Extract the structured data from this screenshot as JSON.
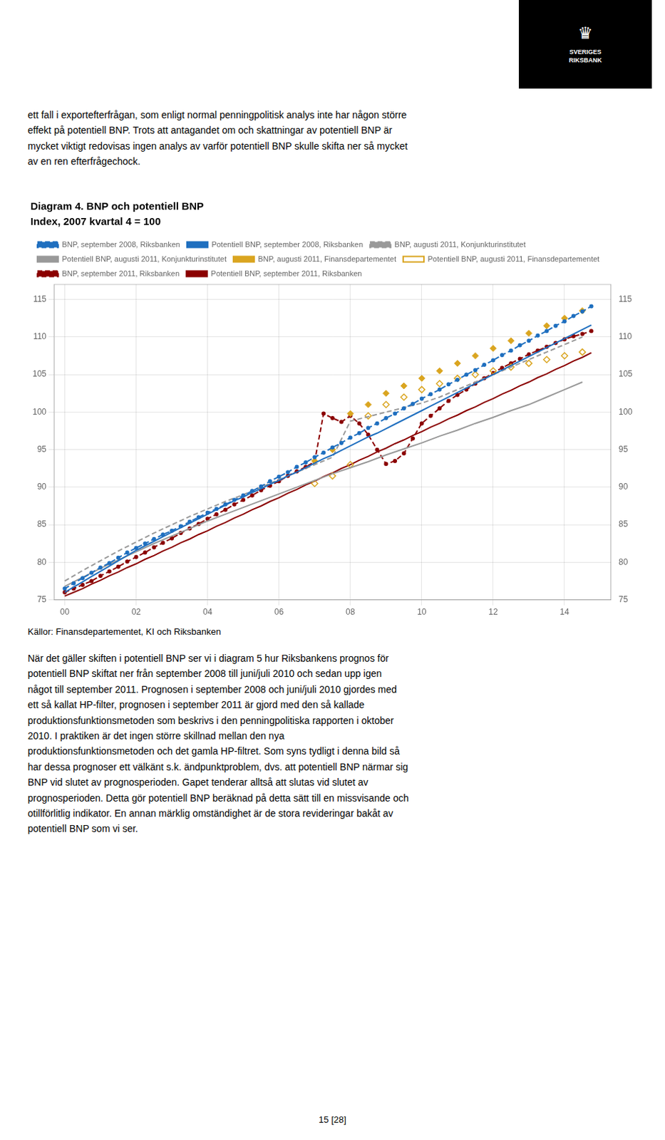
{
  "chart_data": {
    "type": "line",
    "title": "Diagram 4. BNP och potentiell BNP",
    "subtitle": "Index, 2007 kvartal 4 = 100",
    "annotations": [
      "Källor: Finansdepartementet, KI och Riksbanken"
    ],
    "xlim": [
      -0.3,
      15.3
    ],
    "xticks": [
      {
        "value": 0,
        "label": "00"
      },
      {
        "value": 2,
        "label": "02"
      },
      {
        "value": 4,
        "label": "04"
      },
      {
        "value": 6,
        "label": "06"
      },
      {
        "value": 8,
        "label": "08"
      },
      {
        "value": 10,
        "label": "10"
      },
      {
        "value": 12,
        "label": "12"
      },
      {
        "value": 14,
        "label": "14"
      }
    ],
    "ylim": [
      75,
      117
    ],
    "yticks": [
      75,
      80,
      85,
      90,
      95,
      100,
      105,
      110,
      115
    ],
    "y2lim": [
      75,
      117
    ],
    "y2ticks": [
      75,
      80,
      85,
      90,
      95,
      100,
      105,
      110,
      115
    ],
    "grid": true,
    "legend": "upper left",
    "series": [
      {
        "name": "BNP, september 2008, Riksbanken",
        "color": "#1F6FBF",
        "line_style": "dashed",
        "marker": "circle",
        "x": [
          0,
          0.25,
          0.5,
          0.75,
          1,
          1.25,
          1.5,
          1.75,
          2,
          2.25,
          2.5,
          2.75,
          3,
          3.25,
          3.5,
          3.75,
          4,
          4.25,
          4.5,
          4.75,
          5,
          5.25,
          5.5,
          5.75,
          6,
          6.25,
          6.5,
          6.75,
          7,
          7.25,
          7.5,
          7.75,
          8,
          8.25,
          8.5,
          8.75,
          9,
          9.25,
          9.5,
          9.75,
          10,
          10.25,
          10.5,
          10.75,
          11,
          11.25,
          11.5,
          11.75,
          12,
          12.25,
          12.5,
          12.75,
          13,
          13.25,
          13.5,
          13.75,
          14,
          14.25,
          14.5,
          14.75
        ],
        "values": [
          76.5,
          77.2,
          77.9,
          78.6,
          79.3,
          79.9,
          80.6,
          81.3,
          81.9,
          82.5,
          83.1,
          83.7,
          84.2,
          84.8,
          85.4,
          86.0,
          86.6,
          87.1,
          87.7,
          88.3,
          88.9,
          89.5,
          90.1,
          90.8,
          91.4,
          92.0,
          92.7,
          93.3,
          94.0,
          94.6,
          95.3,
          95.9,
          96.6,
          97.2,
          97.9,
          98.5,
          99.2,
          99.8,
          100.5,
          101.1,
          101.8,
          102.4,
          103.0,
          103.7,
          104.3,
          105.0,
          105.6,
          106.3,
          106.9,
          107.6,
          108.2,
          108.9,
          109.5,
          110.2,
          110.8,
          111.5,
          112.1,
          112.8,
          113.4,
          114.1
        ]
      },
      {
        "name": "Potentiell BNP, september 2008, Riksbanken",
        "color": "#1F6FBF",
        "line_style": "solid",
        "marker": "none",
        "x": [
          0,
          0.25,
          0.5,
          0.75,
          1,
          1.25,
          1.5,
          1.75,
          2,
          2.25,
          2.5,
          2.75,
          3,
          3.25,
          3.5,
          3.75,
          4,
          4.25,
          4.5,
          4.75,
          5,
          5.25,
          5.5,
          5.75,
          6,
          6.25,
          6.5,
          6.75,
          7,
          7.25,
          7.5,
          7.75,
          8,
          8.25,
          8.5,
          8.75,
          9,
          9.25,
          9.5,
          9.75,
          10,
          10.25,
          10.5,
          10.75,
          11,
          11.25,
          11.5,
          11.75,
          12,
          12.25,
          12.5,
          12.75,
          13,
          13.25,
          13.5,
          13.75,
          14,
          14.25,
          14.5,
          14.75
        ],
        "values": [
          76.0,
          76.7,
          77.4,
          78.1,
          78.8,
          79.5,
          80.2,
          80.9,
          81.6,
          82.2,
          82.8,
          83.4,
          84.0,
          84.6,
          85.2,
          85.8,
          86.4,
          87.0,
          87.6,
          88.2,
          88.7,
          89.3,
          89.8,
          90.4,
          90.9,
          91.5,
          92.0,
          92.6,
          93.2,
          93.8,
          94.3,
          94.9,
          95.5,
          96.1,
          96.7,
          97.2,
          97.8,
          98.4,
          99.0,
          99.6,
          100.2,
          100.8,
          101.4,
          102.0,
          102.6,
          103.2,
          103.8,
          104.4,
          105.0,
          105.6,
          106.2,
          106.8,
          107.4,
          108.0,
          108.6,
          109.2,
          109.8,
          110.4,
          111.0,
          111.6
        ]
      },
      {
        "name": "BNP, augusti 2011, Konjunkturinstitutet",
        "color": "#999999",
        "line_style": "dashed",
        "marker": "none",
        "x": [
          0,
          0.5,
          1,
          1.5,
          2,
          2.5,
          3,
          3.5,
          4,
          4.5,
          5,
          5.5,
          6,
          6.5,
          7,
          7.5,
          8,
          8.5,
          9,
          9.5,
          10,
          10.5,
          11,
          11.5,
          12,
          12.5,
          13,
          13.5,
          14,
          14.5
        ],
        "values": [
          77.5,
          78.9,
          80.2,
          81.5,
          82.7,
          83.9,
          85.0,
          86.1,
          87.1,
          88.1,
          89.0,
          90.0,
          91.0,
          92.0,
          93.0,
          94.0,
          98.8,
          99.4,
          100.0,
          100.6,
          101.2,
          102.0,
          103.0,
          104.0,
          105.0,
          106.0,
          107.0,
          108.0,
          109.0,
          110.0
        ]
      },
      {
        "name": "Potentiell BNP, augusti 2011, Konjunkturinstitutet",
        "color": "#999999",
        "line_style": "solid",
        "marker": "none",
        "x": [
          0,
          0.5,
          1,
          1.5,
          2,
          2.5,
          3,
          3.5,
          4,
          4.5,
          5,
          5.5,
          6,
          6.5,
          7,
          7.5,
          8,
          8.5,
          9,
          9.5,
          10,
          10.5,
          11,
          11.5,
          12,
          12.5,
          13,
          13.5,
          14,
          14.5
        ],
        "values": [
          76.8,
          78.0,
          79.2,
          80.3,
          81.4,
          82.5,
          83.5,
          84.5,
          85.5,
          86.4,
          87.3,
          88.2,
          89.1,
          90.0,
          90.9,
          91.8,
          92.6,
          93.4,
          94.3,
          95.1,
          95.9,
          96.8,
          97.6,
          98.5,
          99.3,
          100.2,
          101.0,
          102.0,
          103.0,
          104.0
        ]
      },
      {
        "name": "BNP, augusti 2011, Finansdepartementet",
        "color": "#DAA520",
        "line_style": "none",
        "marker": "diamond",
        "x": [
          7,
          7.5,
          8,
          8.5,
          9,
          9.5,
          10,
          10.5,
          11,
          11.5,
          12,
          12.5,
          13,
          13.5,
          14,
          14.5
        ],
        "values": [
          93.5,
          95.0,
          99.8,
          101.0,
          102.5,
          103.5,
          104.5,
          105.5,
          106.5,
          107.5,
          108.5,
          109.5,
          110.5,
          111.5,
          112.5,
          113.5
        ]
      },
      {
        "name": "Potentiell BNP, augusti 2011, Finansdepartementet",
        "color": "#DAA520",
        "line_style": "none",
        "marker": "open-diamond",
        "x": [
          7,
          7.5,
          8,
          8.5,
          9,
          9.5,
          10,
          10.5,
          11,
          11.5,
          12,
          12.5,
          13,
          13.5,
          14,
          14.5
        ],
        "values": [
          90.5,
          91.5,
          93.0,
          99.5,
          101.0,
          102.0,
          103.0,
          103.8,
          104.5,
          105.0,
          105.5,
          106.0,
          106.5,
          107.0,
          107.5,
          108.0
        ]
      },
      {
        "name": "BNP, september 2011, Riksbanken",
        "color": "#8B0000",
        "line_style": "dashed",
        "marker": "circle",
        "x": [
          0,
          0.25,
          0.5,
          0.75,
          1,
          1.25,
          1.5,
          1.75,
          2,
          2.25,
          2.5,
          2.75,
          3,
          3.25,
          3.5,
          3.75,
          4,
          4.25,
          4.5,
          4.75,
          5,
          5.25,
          5.5,
          5.75,
          6,
          6.25,
          6.5,
          6.75,
          7,
          7.25,
          7.5,
          7.75,
          8,
          8.25,
          8.5,
          8.75,
          9,
          9.25,
          9.5,
          9.75,
          10,
          10.25,
          10.5,
          10.75,
          11,
          11.25,
          11.5,
          11.75,
          12,
          12.25,
          12.5,
          12.75,
          13,
          13.25,
          13.5,
          13.75,
          14,
          14.25,
          14.5,
          14.75
        ],
        "values": [
          76.0,
          76.5,
          77.0,
          77.5,
          78.2,
          78.8,
          79.4,
          80.1,
          80.7,
          81.3,
          82.0,
          82.6,
          83.2,
          83.9,
          84.5,
          85.1,
          85.8,
          86.4,
          87.0,
          87.7,
          88.3,
          88.9,
          89.6,
          90.2,
          90.8,
          91.5,
          92.1,
          92.7,
          93.4,
          99.8,
          99.2,
          98.7,
          99.5,
          98.5,
          97.0,
          95.0,
          93.1,
          93.5,
          94.5,
          96.5,
          98.5,
          99.5,
          100.5,
          101.5,
          102.3,
          103.0,
          103.8,
          104.5,
          105.2,
          105.9,
          106.5,
          107.1,
          107.7,
          108.2,
          108.7,
          109.2,
          109.7,
          110.1,
          110.4,
          110.8
        ]
      },
      {
        "name": "Potentiell BNP, september 2011, Riksbanken",
        "color": "#8B0000",
        "line_style": "solid",
        "marker": "none",
        "x": [
          0,
          0.25,
          0.5,
          0.75,
          1,
          1.25,
          1.5,
          1.75,
          2,
          2.25,
          2.5,
          2.75,
          3,
          3.25,
          3.5,
          3.75,
          4,
          4.25,
          4.5,
          4.75,
          5,
          5.25,
          5.5,
          5.75,
          6,
          6.25,
          6.5,
          6.75,
          7,
          7.25,
          7.5,
          7.75,
          8,
          8.25,
          8.5,
          8.75,
          9,
          9.25,
          9.5,
          9.75,
          10,
          10.25,
          10.5,
          10.75,
          11,
          11.25,
          11.5,
          11.75,
          12,
          12.25,
          12.5,
          12.75,
          13,
          13.25,
          13.5,
          13.75,
          14,
          14.25,
          14.5,
          14.75
        ],
        "values": [
          75.5,
          76.0,
          76.5,
          77.1,
          77.6,
          78.2,
          78.7,
          79.3,
          79.8,
          80.4,
          80.9,
          81.5,
          82.0,
          82.6,
          83.1,
          83.7,
          84.2,
          84.8,
          85.3,
          85.9,
          86.4,
          87.0,
          87.5,
          88.1,
          88.6,
          89.2,
          89.7,
          90.3,
          90.8,
          91.4,
          91.9,
          92.5,
          93.0,
          93.6,
          94.1,
          94.7,
          95.2,
          95.8,
          96.3,
          96.9,
          97.4,
          98.0,
          98.5,
          99.1,
          99.6,
          100.2,
          100.7,
          101.3,
          101.8,
          102.4,
          102.9,
          103.5,
          104.0,
          104.6,
          105.1,
          105.7,
          106.2,
          106.8,
          107.3,
          107.9
        ]
      }
    ]
  },
  "page_texts": {
    "logo_symbol": "♛",
    "logo": "SVERIGES\nRIKSBANK",
    "top_text": "ett fall i exportefterfrågan, som enligt normal penningpolitisk analys inte har någon större\neffekt på potentiell BNP. Trots att antagandet om och skattningar av potentiell BNP är\nmycket viktigt redovisas ingen analys av varför potentiell BNP skulle skifta ner så mycket\nav en ren efterfrågechock.",
    "bottom_text": "När det gäller skiften i potentiell BNP ser vi i diagram 5 hur Riksbankens prognos för\npotentiell BNP skiftat ner från september 2008 till juni/juli 2010 och sedan upp igen\nnågot till september 2011. Prognosen i september 2008 och juni/juli 2010 gjordes med\nett så kallat HP-filter, prognosen i september 2011 är gjord med den så kallade\nproduktionsfunktionsmetoden som beskrivs i den penningpolitiska rapporten i oktober\n2010. I praktiken är det ingen större skillnad mellan den nya\nproduktionsfunktionsmetoden och det gamla HP-filtret. Som syns tydligt i denna bild så\nhar dessa prognoser ett välkänt s.k. ändpunktproblem, dvs. att potentiell BNP närmar sig\nBNP vid slutet av prognosperioden. Gapet tenderar alltså att slutas vid slutet av\nprognosperioden. Detta gör potentiell BNP beräknad på detta sätt till en missvisande och\notillförlitlig indikator. En annan märklig omständighet är de stora revideringar bakåt av\npotentiell BNP som vi ser.",
    "page_number": "15  [28]"
  }
}
